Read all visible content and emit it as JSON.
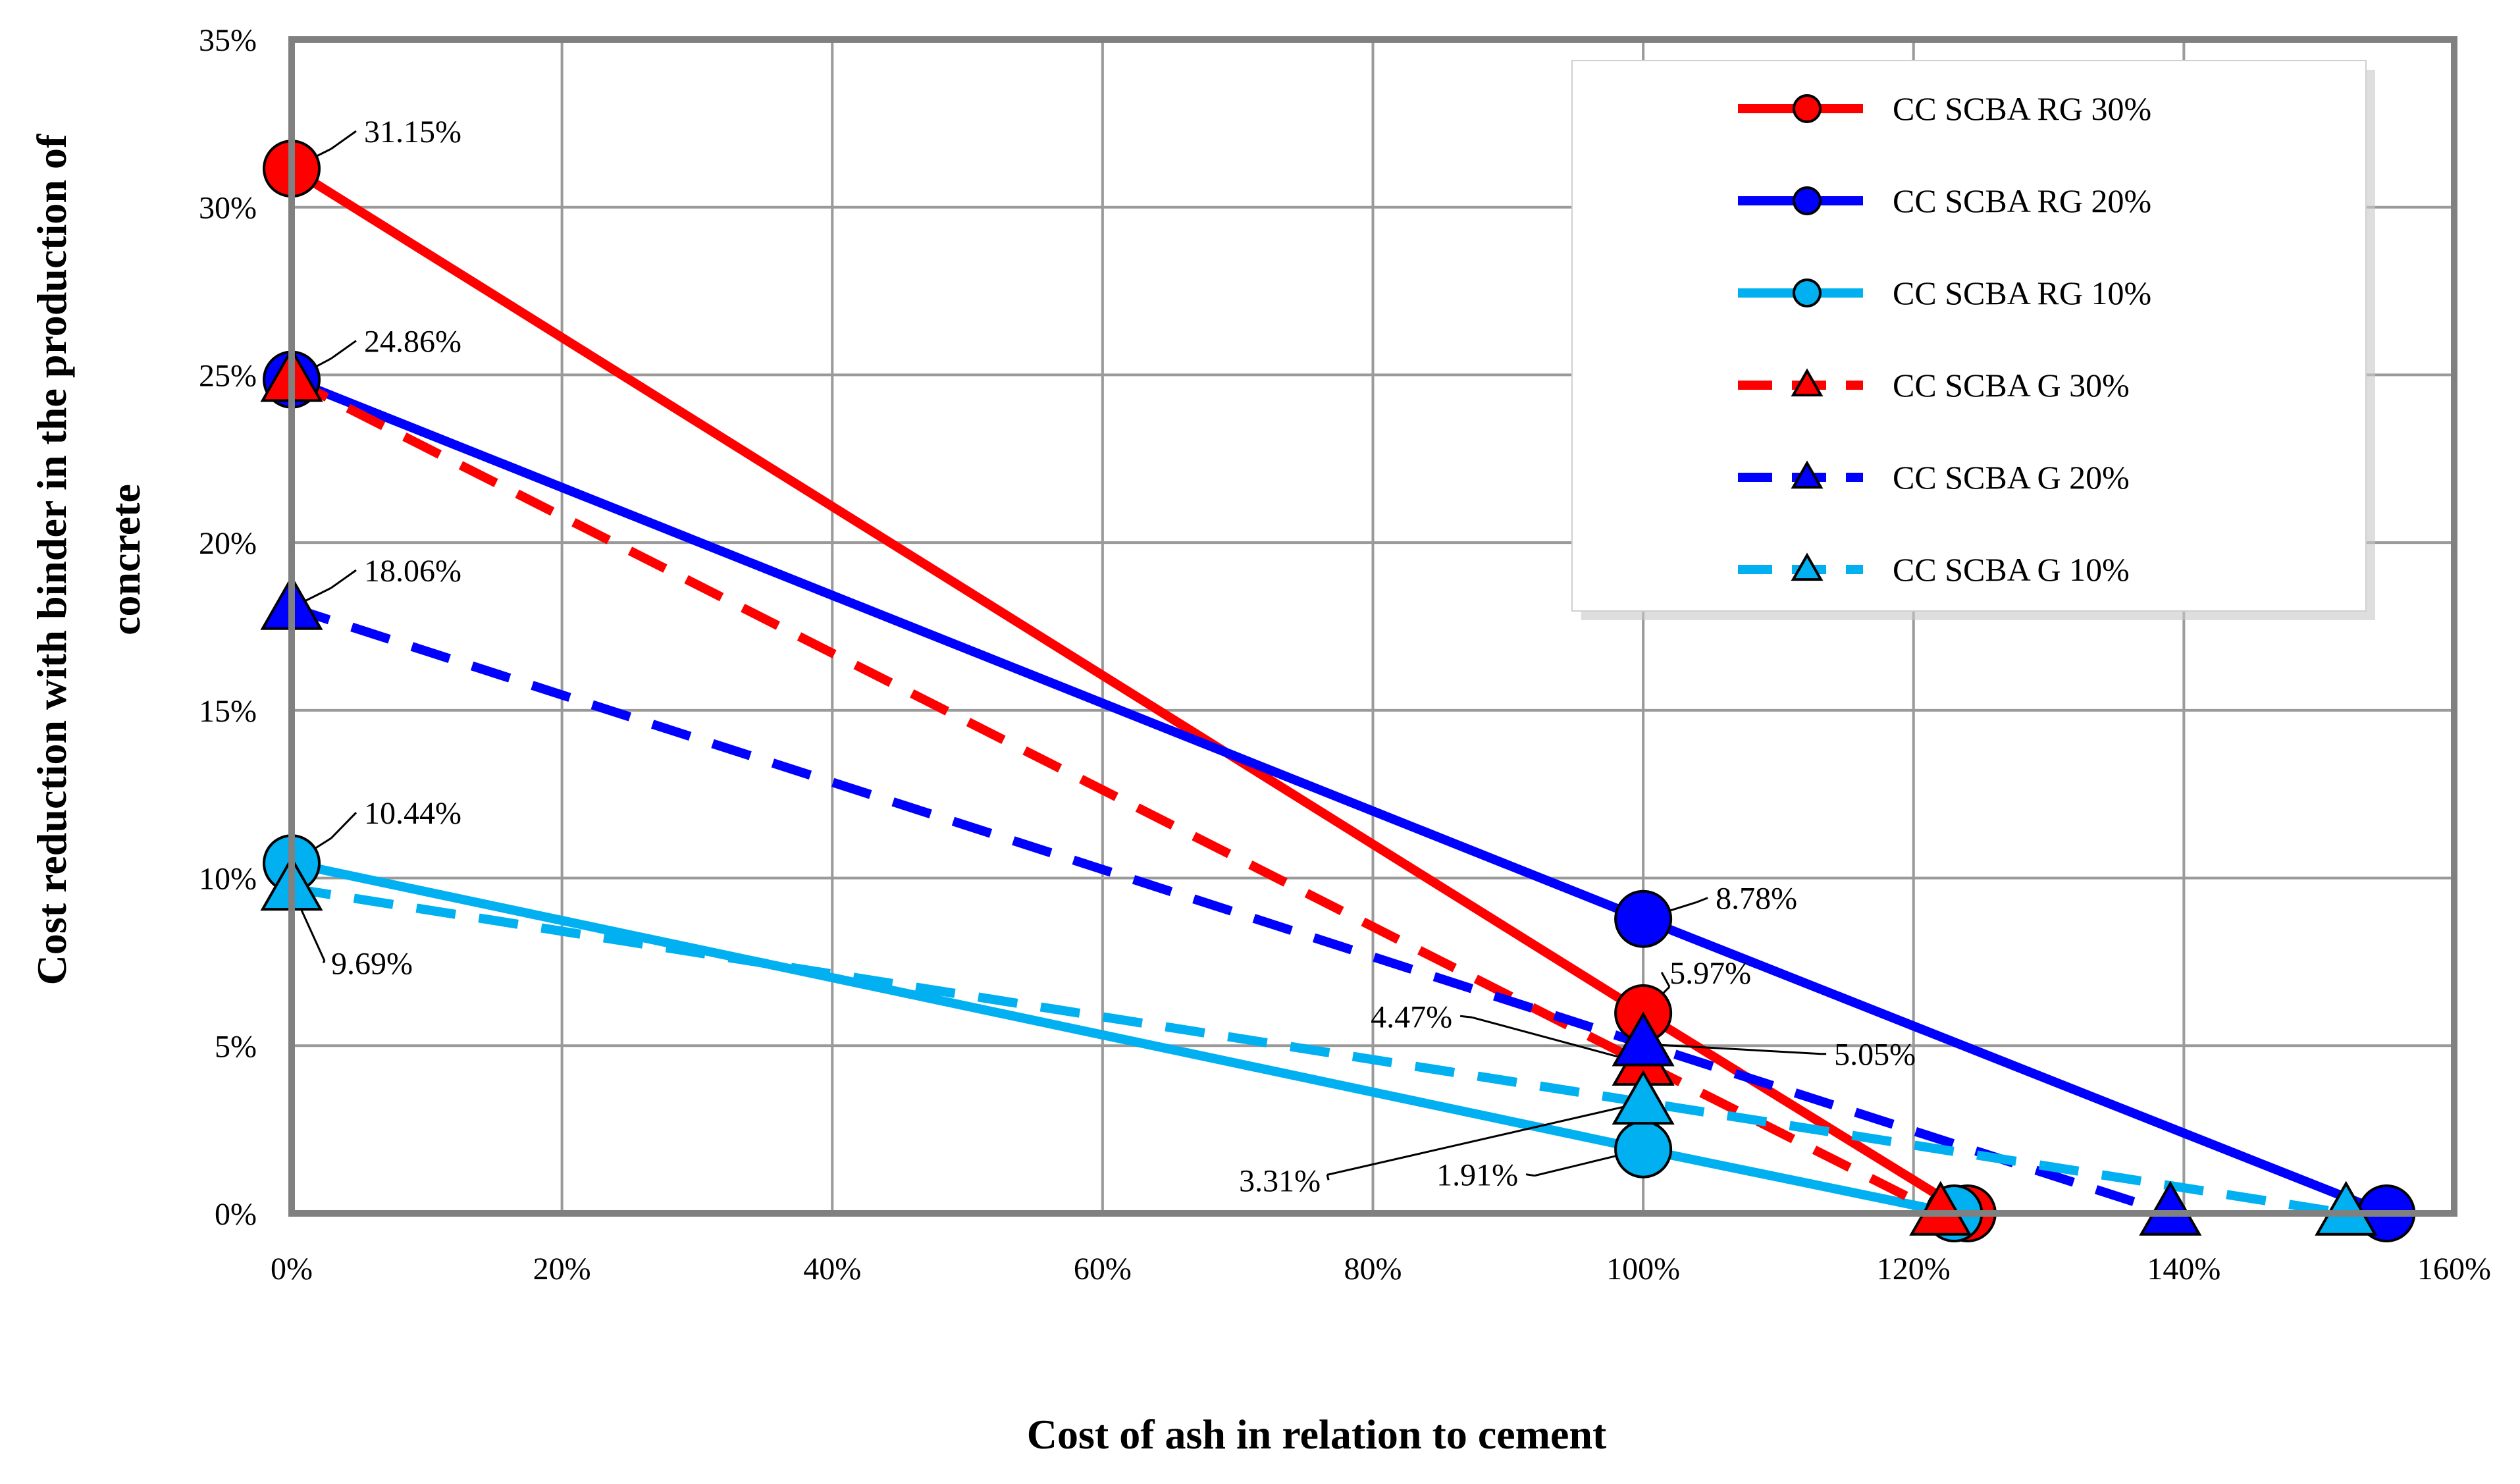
{
  "chart_data": {
    "type": "line",
    "title": "",
    "xlabel": "Cost of ash in relation to cement",
    "ylabel_line1": "Cost reduction with binder in the production of",
    "ylabel_line2": "concrete",
    "xlim": [
      0,
      160
    ],
    "ylim": [
      0,
      35
    ],
    "x_ticks": [
      0,
      20,
      40,
      60,
      80,
      100,
      120,
      140,
      160
    ],
    "x_tick_labels": [
      "0%",
      "20%",
      "40%",
      "60%",
      "80%",
      "100%",
      "120%",
      "140%",
      "160%"
    ],
    "y_ticks": [
      0,
      5,
      10,
      15,
      20,
      25,
      30,
      35
    ],
    "y_tick_labels": [
      "0%",
      "5%",
      "10%",
      "15%",
      "20%",
      "25%",
      "30%",
      "35%"
    ],
    "grid": true,
    "legend_position": "top-right",
    "series": [
      {
        "name": "CC SCBA RG 30%",
        "color": "#ff0000",
        "dash": "solid",
        "marker": "circle",
        "x": [
          0,
          100,
          124
        ],
        "y": [
          31.15,
          5.97,
          0
        ]
      },
      {
        "name": "CC SCBA RG 20%",
        "color": "#0000ff",
        "dash": "solid",
        "marker": "circle",
        "x": [
          0,
          100,
          155
        ],
        "y": [
          24.86,
          8.78,
          0
        ]
      },
      {
        "name": "CC SCBA RG 10%",
        "color": "#00b0f0",
        "dash": "solid",
        "marker": "circle",
        "x": [
          0,
          100,
          123
        ],
        "y": [
          10.44,
          1.91,
          0
        ]
      },
      {
        "name": "CC SCBA G 30%",
        "color": "#ff0000",
        "dash": "dashed",
        "marker": "triangle",
        "x": [
          0,
          100,
          122
        ],
        "y": [
          24.86,
          4.47,
          0
        ]
      },
      {
        "name": "CC SCBA G 20%",
        "color": "#0000ff",
        "dash": "dashed",
        "marker": "triangle",
        "x": [
          0,
          100,
          139
        ],
        "y": [
          18.06,
          5.05,
          0
        ]
      },
      {
        "name": "CC SCBA G 10%",
        "color": "#00b0f0",
        "dash": "dashed",
        "marker": "triangle",
        "x": [
          0,
          100,
          152
        ],
        "y": [
          9.69,
          3.31,
          0
        ]
      }
    ],
    "annotations": [
      {
        "text": "31.15%",
        "x": 0,
        "y": 31.15
      },
      {
        "text": "24.86%",
        "x": 0,
        "y": 24.86
      },
      {
        "text": "18.06%",
        "x": 0,
        "y": 18.06
      },
      {
        "text": "10.44%",
        "x": 0,
        "y": 10.44
      },
      {
        "text": "9.69%",
        "x": 0,
        "y": 9.69
      },
      {
        "text": "8.78%",
        "x": 100,
        "y": 8.78
      },
      {
        "text": "5.97%",
        "x": 100,
        "y": 5.97
      },
      {
        "text": "4.47%",
        "x": 100,
        "y": 4.47
      },
      {
        "text": "5.05%",
        "x": 100,
        "y": 5.05
      },
      {
        "text": "3.31%",
        "x": 100,
        "y": 3.31
      },
      {
        "text": "1.91%",
        "x": 100,
        "y": 1.91
      }
    ]
  }
}
